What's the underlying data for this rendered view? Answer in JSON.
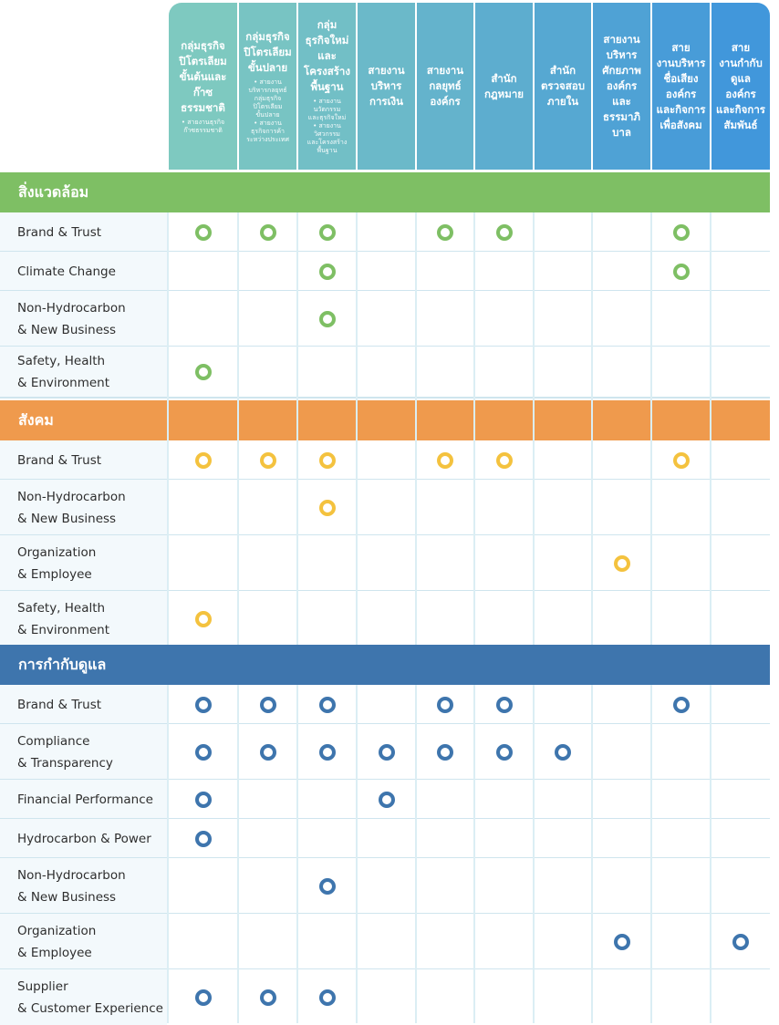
{
  "columns": [
    {
      "title": "กลุ่มธุรกิจ\nปิโตรเลียม\nขั้นต้นและ\nก๊าซธรรมชาติ",
      "note": "• สายงานธุรกิจ\nก๊าซธรรมชาติ"
    },
    {
      "title": "กลุ่มธุรกิจ\nปิโตรเลียม\nขั้นปลาย",
      "note": "• สายงาน\nบริหารกลยุทธ์\nกลุ่มธุรกิจ\nปิโตรเลียม\nขั้นปลาย\n• สายงาน\nธุรกิจการค้า\nระหว่างประเทศ"
    },
    {
      "title": "กลุ่ม\nธุรกิจใหม่\nและ\nโครงสร้าง\nพื้นฐาน",
      "note": "• สายงาน\nนวัตกรรม\nและธุรกิจใหม่\n• สายงาน\nวิศวกรรม\nและโครงสร้าง\nพื้นฐาน"
    },
    {
      "title": "สายงาน\nบริหาร\nการเงิน",
      "note": ""
    },
    {
      "title": "สายงาน\nกลยุทธ์\nองค์กร",
      "note": ""
    },
    {
      "title": "สำนัก\nกฎหมาย",
      "note": ""
    },
    {
      "title": "สำนัก\nตรวจสอบ\nภายใน",
      "note": ""
    },
    {
      "title": "สายงาน\nบริหาร\nศักยภาพ\nองค์กร\nและ\nธรรมาภิ\nบาล",
      "note": ""
    },
    {
      "title": "สาย\nงานบริหาร\nชื่อเสียง\nองค์กร\nและกิจการ\nเพื่อสังคม",
      "note": ""
    },
    {
      "title": "สาย\nงานกำกับ\nดูแล\nองค์กร\nและกิจการ\nสัมพันธ์",
      "note": ""
    }
  ],
  "sections": [
    {
      "title": "สิ่งแวดล้อม",
      "color": "#7ebf64",
      "marker_color": "#7ebf64",
      "rows": [
        {
          "label": "Brand & Trust",
          "marks": [
            1,
            1,
            1,
            0,
            1,
            1,
            0,
            0,
            1,
            0
          ]
        },
        {
          "label": "Climate Change",
          "marks": [
            0,
            0,
            1,
            0,
            0,
            0,
            0,
            0,
            1,
            0
          ]
        },
        {
          "label": "Non-Hydrocarbon\n& New Business",
          "marks": [
            0,
            0,
            1,
            0,
            0,
            0,
            0,
            0,
            0,
            0
          ]
        },
        {
          "label": "Safety, Health\n& Environment",
          "marks": [
            1,
            0,
            0,
            0,
            0,
            0,
            0,
            0,
            0,
            0
          ]
        }
      ]
    },
    {
      "title": "สังคม",
      "color": "#ef9a4d",
      "marker_color": "#f4c23e",
      "rows": [
        {
          "label": "Brand & Trust",
          "marks": [
            1,
            1,
            1,
            0,
            1,
            1,
            0,
            0,
            1,
            0
          ]
        },
        {
          "label": "Non-Hydrocarbon\n& New Business",
          "marks": [
            0,
            0,
            1,
            0,
            0,
            0,
            0,
            0,
            0,
            0
          ]
        },
        {
          "label": "Organization\n& Employee",
          "marks": [
            0,
            0,
            0,
            0,
            0,
            0,
            0,
            1,
            0,
            0
          ]
        },
        {
          "label": "Safety, Health\n& Environment",
          "marks": [
            1,
            0,
            0,
            0,
            0,
            0,
            0,
            0,
            0,
            0
          ]
        }
      ]
    },
    {
      "title": "การกำกับดูแล",
      "color": "#3e75ad",
      "marker_color": "#3e75ad",
      "rows": [
        {
          "label": "Brand & Trust",
          "marks": [
            1,
            1,
            1,
            0,
            1,
            1,
            0,
            0,
            1,
            0
          ]
        },
        {
          "label": "Compliance\n& Transparency",
          "marks": [
            1,
            1,
            1,
            1,
            1,
            1,
            1,
            0,
            0,
            0
          ]
        },
        {
          "label": "Financial Performance",
          "marks": [
            1,
            0,
            0,
            1,
            0,
            0,
            0,
            0,
            0,
            0
          ]
        },
        {
          "label": "Hydrocarbon & Power",
          "marks": [
            1,
            0,
            0,
            0,
            0,
            0,
            0,
            0,
            0,
            0
          ]
        },
        {
          "label": "Non-Hydrocarbon\n& New Business",
          "marks": [
            0,
            0,
            1,
            0,
            0,
            0,
            0,
            0,
            0,
            0
          ]
        },
        {
          "label": "Organization\n& Employee",
          "marks": [
            0,
            0,
            0,
            0,
            0,
            0,
            0,
            1,
            0,
            1
          ]
        },
        {
          "label": "Supplier\n& Customer Experience",
          "marks": [
            1,
            1,
            1,
            0,
            0,
            0,
            0,
            0,
            0,
            0
          ]
        }
      ]
    }
  ]
}
